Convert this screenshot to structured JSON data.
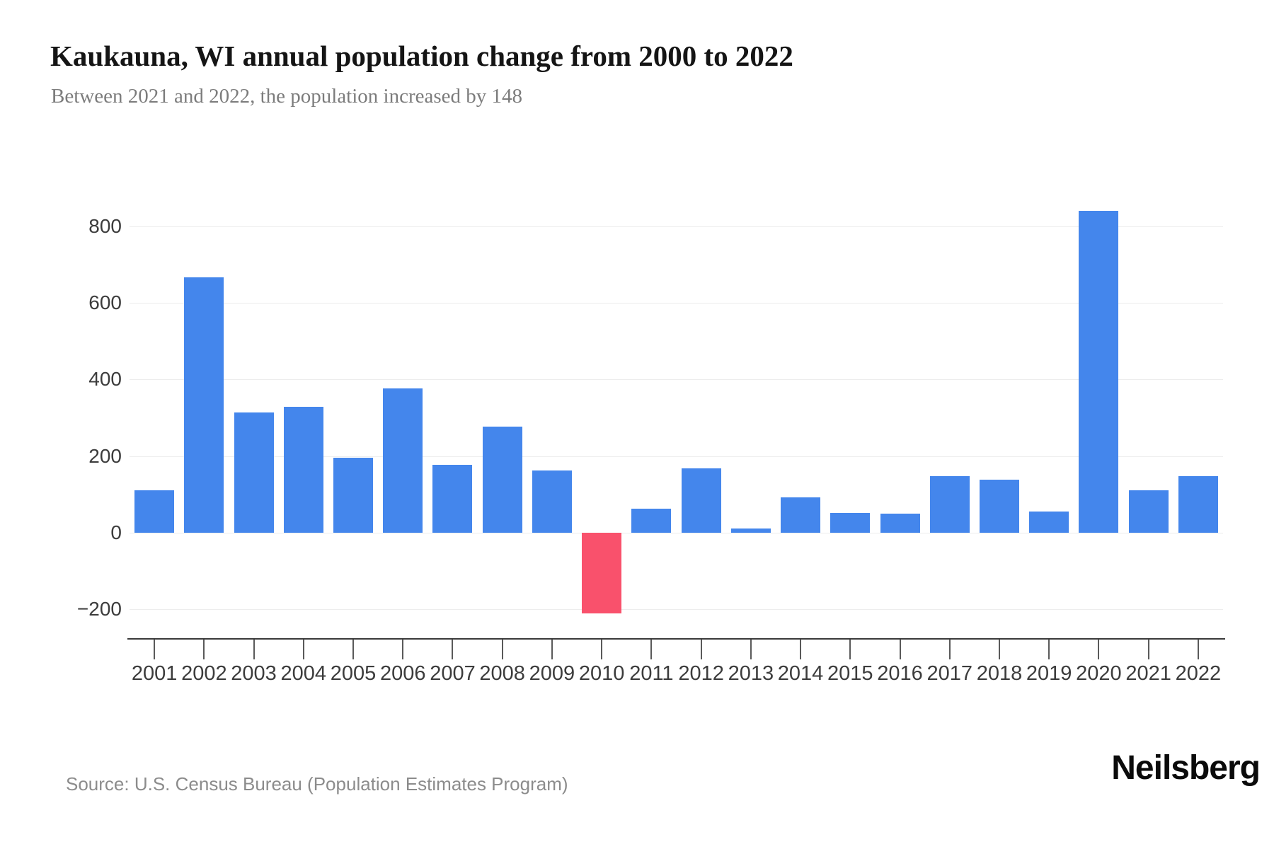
{
  "header": {
    "title": "Kaukauna, WI annual population change from 2000 to 2022",
    "subtitle": "Between 2021 and 2022, the population increased by 148"
  },
  "footer": {
    "source": "Source: U.S. Census Bureau (Population Estimates Program)",
    "logo": "Neilsberg"
  },
  "colors": {
    "bar_positive": "#4486ec",
    "bar_negative": "#f9516c",
    "gridline": "#ededed",
    "axis_line": "#3a3a3a",
    "tick_label": "#3c3c3c"
  },
  "chart_data": {
    "type": "bar",
    "title": "Kaukauna, WI annual population change from 2000 to 2022",
    "xlabel": "",
    "ylabel": "",
    "categories": [
      "2001",
      "2002",
      "2003",
      "2004",
      "2005",
      "2006",
      "2007",
      "2008",
      "2009",
      "2010",
      "2011",
      "2012",
      "2013",
      "2014",
      "2015",
      "2016",
      "2017",
      "2018",
      "2019",
      "2020",
      "2021",
      "2022"
    ],
    "values": [
      110,
      667,
      314,
      329,
      196,
      377,
      178,
      277,
      162,
      -210,
      63,
      168,
      11,
      92,
      52,
      50,
      148,
      139,
      55,
      840,
      111,
      148
    ],
    "yticks": [
      -200,
      0,
      200,
      400,
      600,
      800
    ],
    "ylim": [
      -280,
      880
    ],
    "grid": true,
    "legend": "none",
    "negative_bars_highlighted": true
  }
}
